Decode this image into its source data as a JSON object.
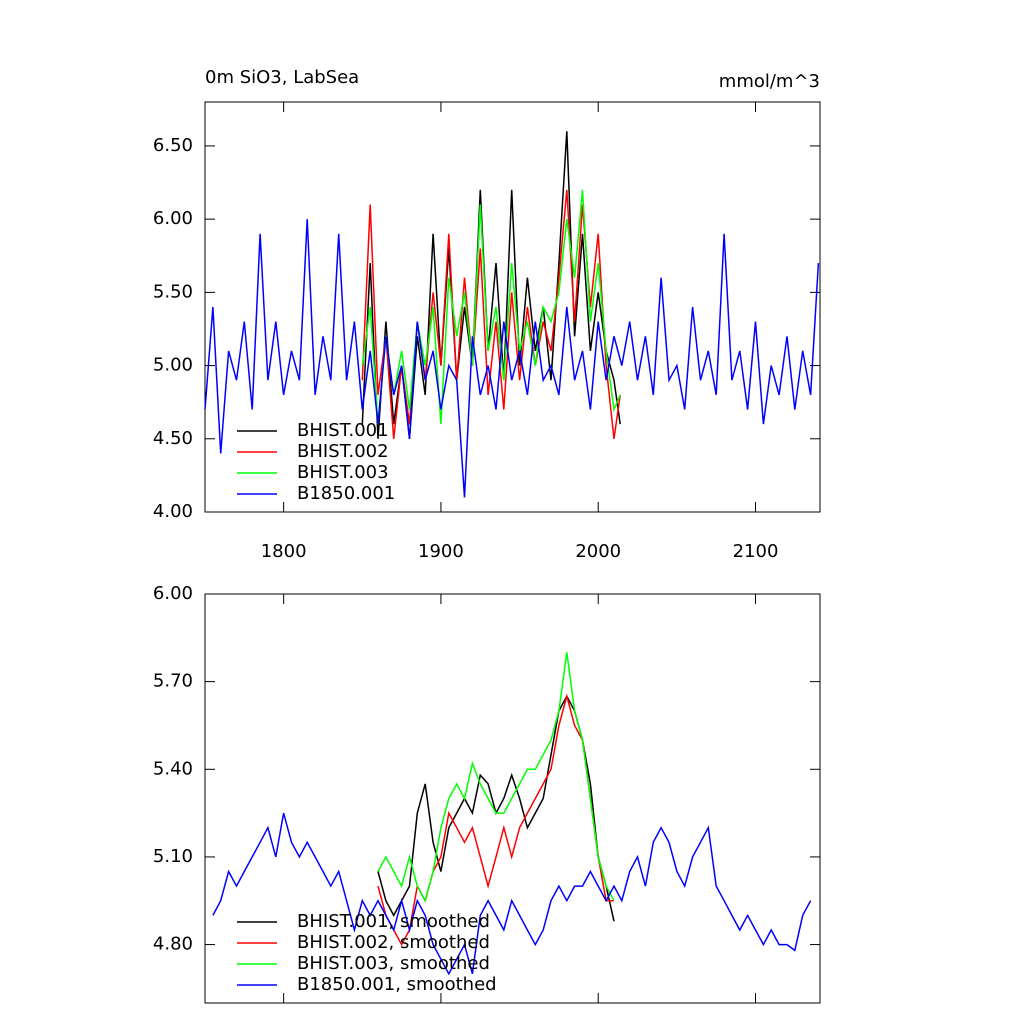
{
  "chart_data": [
    {
      "type": "line",
      "title": "0m SiO3, LabSea",
      "units": "mmol/m^3",
      "xlim": [
        1750,
        2141
      ],
      "xticks": [
        1800,
        1900,
        2000,
        2100
      ],
      "ylim": [
        4.0,
        6.8
      ],
      "yticks": [
        {
          "value": 4.0,
          "label": "4.00"
        },
        {
          "value": 4.5,
          "label": "4.50"
        },
        {
          "value": 5.0,
          "label": "5.00"
        },
        {
          "value": 5.5,
          "label": "5.50"
        },
        {
          "value": 6.0,
          "label": "6.00"
        },
        {
          "value": 6.5,
          "label": "6.50"
        }
      ],
      "legend": "lower left",
      "series": [
        {
          "name": "BHIST.001",
          "color": "#000000",
          "x": [
            1850,
            1855,
            1860,
            1865,
            1870,
            1875,
            1880,
            1885,
            1890,
            1895,
            1900,
            1905,
            1910,
            1915,
            1920,
            1925,
            1930,
            1935,
            1940,
            1945,
            1950,
            1955,
            1960,
            1965,
            1970,
            1975,
            1980,
            1985,
            1990,
            1995,
            2000,
            2005,
            2010,
            2014
          ],
          "values": [
            4.6,
            5.7,
            4.5,
            5.3,
            4.6,
            5.0,
            4.5,
            5.2,
            4.8,
            5.9,
            5.0,
            5.8,
            4.9,
            5.4,
            5.0,
            6.2,
            5.1,
            5.7,
            4.9,
            6.2,
            5.0,
            5.6,
            5.1,
            5.4,
            4.9,
            5.7,
            6.6,
            5.2,
            5.9,
            5.1,
            5.5,
            5.1,
            4.9,
            4.6
          ]
        },
        {
          "name": "BHIST.002",
          "color": "#ff0000",
          "x": [
            1850,
            1855,
            1860,
            1865,
            1870,
            1875,
            1880,
            1885,
            1890,
            1895,
            1900,
            1905,
            1910,
            1915,
            1920,
            1925,
            1930,
            1935,
            1940,
            1945,
            1950,
            1955,
            1960,
            1965,
            1970,
            1975,
            1980,
            1985,
            1990,
            1995,
            2000,
            2005,
            2010,
            2014
          ],
          "values": [
            4.9,
            6.1,
            4.8,
            5.2,
            4.5,
            5.0,
            4.6,
            5.3,
            4.9,
            5.5,
            5.0,
            5.9,
            4.9,
            5.6,
            5.0,
            5.8,
            4.8,
            5.3,
            4.7,
            5.5,
            4.9,
            5.4,
            5.0,
            5.3,
            5.1,
            5.6,
            6.2,
            5.3,
            6.1,
            5.4,
            5.9,
            5.0,
            4.5,
            4.8
          ]
        },
        {
          "name": "BHIST.003",
          "color": "#00ff00",
          "x": [
            1850,
            1855,
            1860,
            1865,
            1870,
            1875,
            1880,
            1885,
            1890,
            1895,
            1900,
            1905,
            1910,
            1915,
            1920,
            1925,
            1930,
            1935,
            1940,
            1945,
            1950,
            1955,
            1960,
            1965,
            1970,
            1975,
            1980,
            1985,
            1990,
            1995,
            2000,
            2005,
            2010,
            2014
          ],
          "values": [
            5.0,
            5.4,
            4.6,
            5.2,
            4.8,
            5.1,
            4.7,
            5.3,
            5.0,
            5.4,
            4.6,
            5.6,
            5.2,
            5.5,
            5.0,
            6.1,
            5.1,
            5.4,
            4.9,
            5.7,
            5.1,
            5.3,
            5.0,
            5.4,
            5.3,
            5.5,
            6.0,
            5.6,
            6.2,
            5.3,
            5.7,
            5.1,
            4.7,
            4.8
          ]
        },
        {
          "name": "B1850.001",
          "color": "#0000ff",
          "x": [
            1750,
            1755,
            1760,
            1765,
            1770,
            1775,
            1780,
            1785,
            1790,
            1795,
            1800,
            1805,
            1810,
            1815,
            1820,
            1825,
            1830,
            1835,
            1840,
            1845,
            1850,
            1855,
            1860,
            1865,
            1870,
            1875,
            1880,
            1885,
            1890,
            1895,
            1900,
            1905,
            1910,
            1915,
            1920,
            1925,
            1930,
            1935,
            1940,
            1945,
            1950,
            1955,
            1960,
            1965,
            1970,
            1975,
            1980,
            1985,
            1990,
            1995,
            2000,
            2005,
            2010,
            2015,
            2020,
            2025,
            2030,
            2035,
            2040,
            2045,
            2050,
            2055,
            2060,
            2065,
            2070,
            2075,
            2080,
            2085,
            2090,
            2095,
            2100,
            2105,
            2110,
            2115,
            2120,
            2125,
            2130,
            2135,
            2140
          ],
          "values": [
            4.7,
            5.4,
            4.4,
            5.1,
            4.9,
            5.3,
            4.7,
            5.9,
            4.9,
            5.3,
            4.8,
            5.1,
            4.9,
            6.0,
            4.8,
            5.2,
            4.9,
            5.9,
            4.9,
            5.3,
            4.7,
            5.1,
            4.6,
            5.2,
            4.8,
            5.0,
            4.5,
            5.3,
            4.9,
            5.1,
            4.7,
            5.0,
            4.9,
            4.1,
            5.2,
            4.8,
            5.0,
            4.7,
            5.3,
            4.9,
            5.1,
            4.8,
            5.3,
            4.9,
            5.0,
            4.8,
            5.4,
            4.9,
            5.1,
            4.7,
            5.3,
            4.9,
            5.2,
            5.0,
            5.3,
            4.9,
            5.2,
            4.8,
            5.6,
            4.9,
            5.0,
            4.7,
            5.4,
            4.9,
            5.1,
            4.8,
            5.9,
            4.9,
            5.1,
            4.7,
            5.3,
            4.6,
            5.0,
            4.8,
            5.2,
            4.7,
            5.1,
            4.8,
            5.7
          ]
        }
      ]
    },
    {
      "type": "line",
      "xlim": [
        1750,
        2141
      ],
      "xticks": [
        1800,
        1900,
        2000,
        2100
      ],
      "ylim": [
        4.6,
        6.0
      ],
      "yticks": [
        {
          "value": 4.8,
          "label": "4.80"
        },
        {
          "value": 5.1,
          "label": "5.10"
        },
        {
          "value": 5.4,
          "label": "5.40"
        },
        {
          "value": 5.7,
          "label": "5.70"
        },
        {
          "value": 6.0,
          "label": "6.00"
        }
      ],
      "legend": "lower left",
      "series": [
        {
          "name": "BHIST.001, smoothed",
          "color": "#000000",
          "x": [
            1860,
            1865,
            1870,
            1875,
            1880,
            1885,
            1890,
            1895,
            1900,
            1905,
            1910,
            1915,
            1920,
            1925,
            1930,
            1935,
            1940,
            1945,
            1950,
            1955,
            1960,
            1965,
            1970,
            1975,
            1980,
            1985,
            1990,
            1995,
            2000,
            2005,
            2010
          ],
          "values": [
            5.05,
            4.95,
            4.9,
            4.95,
            5.0,
            5.25,
            5.35,
            5.15,
            5.05,
            5.2,
            5.25,
            5.3,
            5.25,
            5.38,
            5.35,
            5.25,
            5.3,
            5.38,
            5.3,
            5.2,
            5.25,
            5.3,
            5.45,
            5.6,
            5.65,
            5.6,
            5.5,
            5.35,
            5.1,
            5.0,
            4.88
          ]
        },
        {
          "name": "BHIST.002, smoothed",
          "color": "#ff0000",
          "x": [
            1860,
            1865,
            1870,
            1875,
            1880,
            1885,
            1890,
            1895,
            1900,
            1905,
            1910,
            1915,
            1920,
            1925,
            1930,
            1935,
            1940,
            1945,
            1950,
            1955,
            1960,
            1965,
            1970,
            1975,
            1980,
            1985,
            1990,
            1995,
            2000,
            2005,
            2010
          ],
          "values": [
            5.0,
            4.9,
            4.85,
            4.8,
            4.85,
            5.0,
            4.95,
            5.05,
            5.1,
            5.25,
            5.2,
            5.15,
            5.2,
            5.1,
            5.0,
            5.1,
            5.2,
            5.1,
            5.2,
            5.25,
            5.3,
            5.35,
            5.4,
            5.55,
            5.65,
            5.55,
            5.5,
            5.3,
            5.1,
            4.95,
            4.95
          ]
        },
        {
          "name": "BHIST.003, smoothed",
          "color": "#00ff00",
          "x": [
            1860,
            1865,
            1870,
            1875,
            1880,
            1885,
            1890,
            1895,
            1900,
            1905,
            1910,
            1915,
            1920,
            1925,
            1930,
            1935,
            1940,
            1945,
            1950,
            1955,
            1960,
            1965,
            1970,
            1975,
            1980,
            1985,
            1990,
            1995,
            2000,
            2005,
            2010
          ],
          "values": [
            5.05,
            5.1,
            5.05,
            5.0,
            5.1,
            5.0,
            4.95,
            5.05,
            5.2,
            5.3,
            5.35,
            5.3,
            5.42,
            5.35,
            5.3,
            5.25,
            5.25,
            5.3,
            5.35,
            5.4,
            5.4,
            5.45,
            5.5,
            5.6,
            5.8,
            5.6,
            5.5,
            5.3,
            5.1,
            5.0,
            4.95
          ]
        },
        {
          "name": "B1850.001, smoothed",
          "color": "#0000ff",
          "x": [
            1755,
            1760,
            1765,
            1770,
            1775,
            1780,
            1785,
            1790,
            1795,
            1800,
            1805,
            1810,
            1815,
            1820,
            1825,
            1830,
            1835,
            1840,
            1845,
            1850,
            1855,
            1860,
            1865,
            1870,
            1875,
            1880,
            1885,
            1890,
            1895,
            1900,
            1905,
            1910,
            1915,
            1920,
            1925,
            1930,
            1935,
            1940,
            1945,
            1950,
            1955,
            1960,
            1965,
            1970,
            1975,
            1980,
            1985,
            1990,
            1995,
            2000,
            2005,
            2010,
            2015,
            2020,
            2025,
            2030,
            2035,
            2040,
            2045,
            2050,
            2055,
            2060,
            2065,
            2070,
            2075,
            2080,
            2085,
            2090,
            2095,
            2100,
            2105,
            2110,
            2115,
            2120,
            2125,
            2130,
            2135
          ],
          "values": [
            4.9,
            4.95,
            5.05,
            5.0,
            5.05,
            5.1,
            5.15,
            5.2,
            5.1,
            5.25,
            5.15,
            5.1,
            5.15,
            5.1,
            5.05,
            5.0,
            5.05,
            4.95,
            4.85,
            4.95,
            4.9,
            4.95,
            4.9,
            4.85,
            4.95,
            4.85,
            4.95,
            4.9,
            4.8,
            4.75,
            4.7,
            4.75,
            4.8,
            4.7,
            4.9,
            4.95,
            4.9,
            4.85,
            4.95,
            4.9,
            4.85,
            4.8,
            4.85,
            4.95,
            5.0,
            4.95,
            5.0,
            5.0,
            5.05,
            5.0,
            4.95,
            5.0,
            4.95,
            5.05,
            5.1,
            5.0,
            5.15,
            5.2,
            5.15,
            5.05,
            5.0,
            5.1,
            5.15,
            5.2,
            5.0,
            4.95,
            4.9,
            4.85,
            4.9,
            4.85,
            4.8,
            4.85,
            4.8,
            4.8,
            4.78,
            4.9,
            4.95
          ]
        }
      ]
    }
  ]
}
